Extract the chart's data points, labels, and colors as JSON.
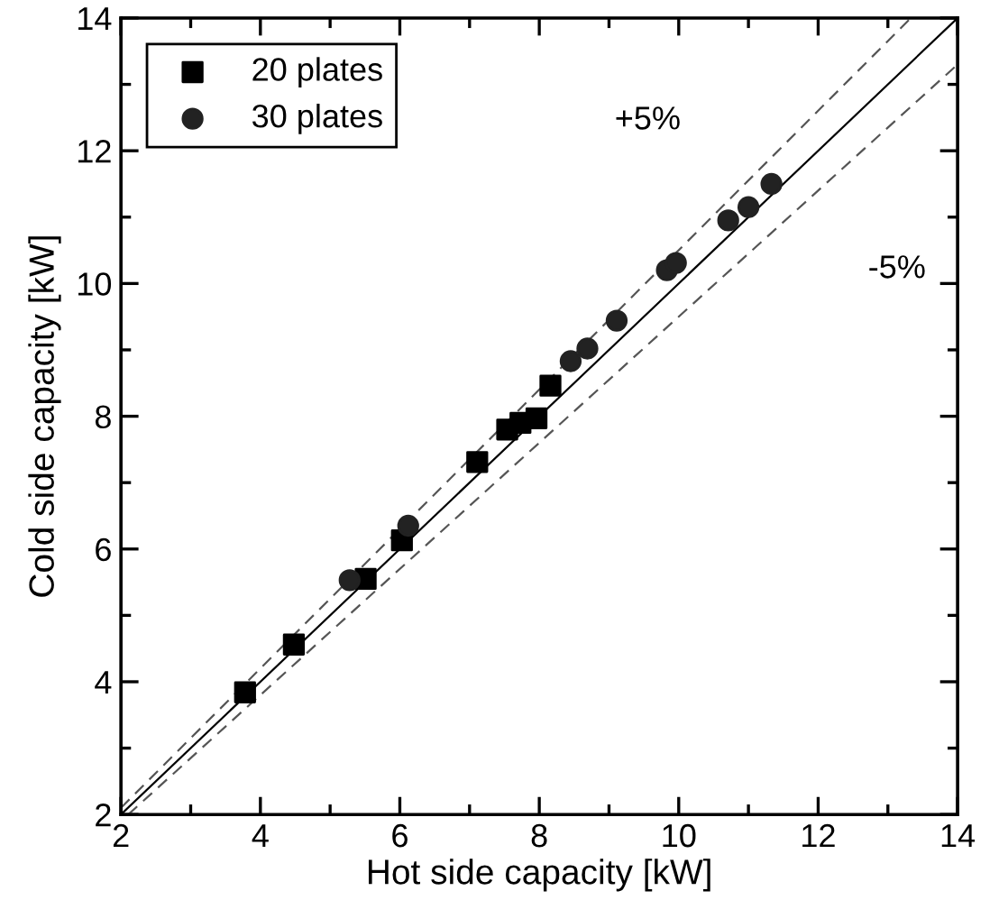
{
  "chart_data": {
    "type": "scatter",
    "xlabel": "Hot side capacity [kW]",
    "ylabel": "Cold side capacity [kW]",
    "xlim": [
      2,
      14
    ],
    "ylim": [
      2,
      14
    ],
    "xticks": [
      2,
      {
        "value": 3,
        "label": null
      },
      4,
      {
        "value": 5,
        "label": null
      },
      6,
      {
        "value": 7,
        "label": null
      },
      8,
      {
        "value": 9,
        "label": null
      },
      10,
      {
        "value": 11,
        "label": null
      },
      12,
      {
        "value": 13,
        "label": null
      },
      14
    ],
    "yticks": [
      2,
      {
        "value": 3,
        "label": null
      },
      4,
      {
        "value": 5,
        "label": null
      },
      6,
      {
        "value": 7,
        "label": null
      },
      8,
      {
        "value": 9,
        "label": null
      },
      10,
      {
        "value": 11,
        "label": null
      },
      12,
      {
        "value": 13,
        "label": null
      },
      14
    ],
    "grid": false,
    "legend": "top left",
    "series": [
      {
        "name": "20 plates",
        "marker": "square",
        "color": "#000000",
        "x": [
          3.78,
          4.48,
          5.51,
          6.03,
          7.11,
          7.54,
          7.73,
          7.96,
          8.16
        ],
        "values": [
          3.84,
          4.56,
          5.55,
          6.13,
          7.31,
          7.8,
          7.9,
          7.97,
          8.46
        ]
      },
      {
        "name": "30 plates",
        "marker": "circle",
        "color": "#222222",
        "x": [
          5.28,
          6.12,
          8.45,
          8.69,
          9.11,
          9.83,
          9.96,
          10.71,
          11.0,
          11.33
        ],
        "values": [
          5.53,
          6.35,
          8.83,
          9.02,
          9.44,
          10.2,
          10.31,
          10.95,
          11.15,
          11.5
        ]
      },
      {
        "type": "line",
        "line_style": "solid",
        "color": "#000000",
        "x": [
          2,
          14
        ],
        "values": [
          2,
          14
        ]
      },
      {
        "name": "+5%",
        "type": "line",
        "line_style": "dashed",
        "color": "#555555",
        "x": [
          2,
          13.33
        ],
        "values": [
          2.1,
          14
        ]
      },
      {
        "name": "-5%",
        "type": "line",
        "line_style": "dashed",
        "color": "#555555",
        "x": [
          2.105,
          14
        ],
        "values": [
          2,
          13.3
        ]
      }
    ]
  }
}
